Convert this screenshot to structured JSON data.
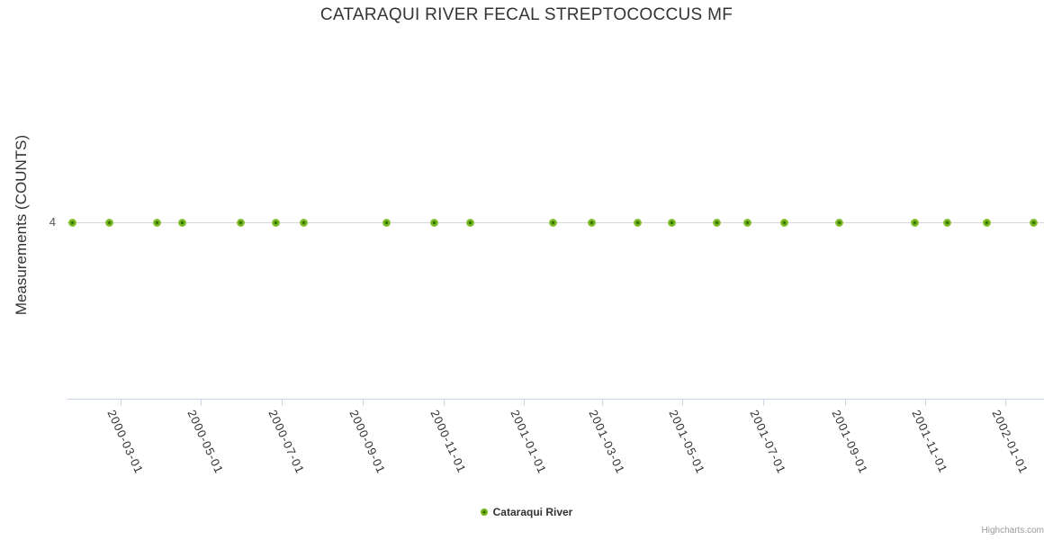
{
  "chart": {
    "title": "CATARAQUI RIVER FECAL STREPTOCOCCUS MF",
    "y_axis": {
      "title": "Measurements (COUNTS)",
      "tick_labels": [
        "4"
      ]
    },
    "legend": {
      "items": [
        {
          "label": "Cataraqui River",
          "marker_color": "#74b51e"
        }
      ]
    },
    "credits": "Highcharts.com"
  },
  "colors": {
    "marker": "#74b51e",
    "marker_center": "#3a7000",
    "grid": "#d8d8d8",
    "axis": "#ccd6eb",
    "title_text": "#333333",
    "credits": "#999999"
  },
  "chart_data": {
    "type": "scatter",
    "title": "CATARAQUI RIVER FECAL STREPTOCOCCUS MF",
    "xlabel": "",
    "ylabel": "Measurements (COUNTS)",
    "legend_position": "bottom-center",
    "grid": "horizontal gridline only at labeled y tick",
    "xlim": [
      "2000-01-21",
      "2002-01-30"
    ],
    "ylim": [
      0,
      8
    ],
    "y_ticks": [
      4
    ],
    "x_ticks": [
      "2000-03-01",
      "2000-05-01",
      "2000-07-01",
      "2000-09-01",
      "2000-11-01",
      "2001-01-01",
      "2001-03-01",
      "2001-05-01",
      "2001-07-01",
      "2001-09-01",
      "2001-11-01",
      "2002-01-01"
    ],
    "series": [
      {
        "name": "Cataraqui River",
        "color": "#74b51e",
        "x": [
          "2000-01-25",
          "2000-02-22",
          "2000-03-29",
          "2000-04-17",
          "2000-05-31",
          "2000-06-27",
          "2000-07-18",
          "2000-09-19",
          "2000-10-25",
          "2000-11-21",
          "2001-01-23",
          "2001-02-21",
          "2001-03-28",
          "2001-04-23",
          "2001-05-27",
          "2001-06-19",
          "2001-07-17",
          "2001-08-28",
          "2001-10-24",
          "2001-11-18",
          "2001-12-18",
          "2002-01-22"
        ],
        "y": [
          4,
          4,
          4,
          4,
          4,
          4,
          4,
          4,
          4,
          4,
          4,
          4,
          4,
          4,
          4,
          4,
          4,
          4,
          4,
          4,
          4,
          4
        ]
      }
    ]
  }
}
